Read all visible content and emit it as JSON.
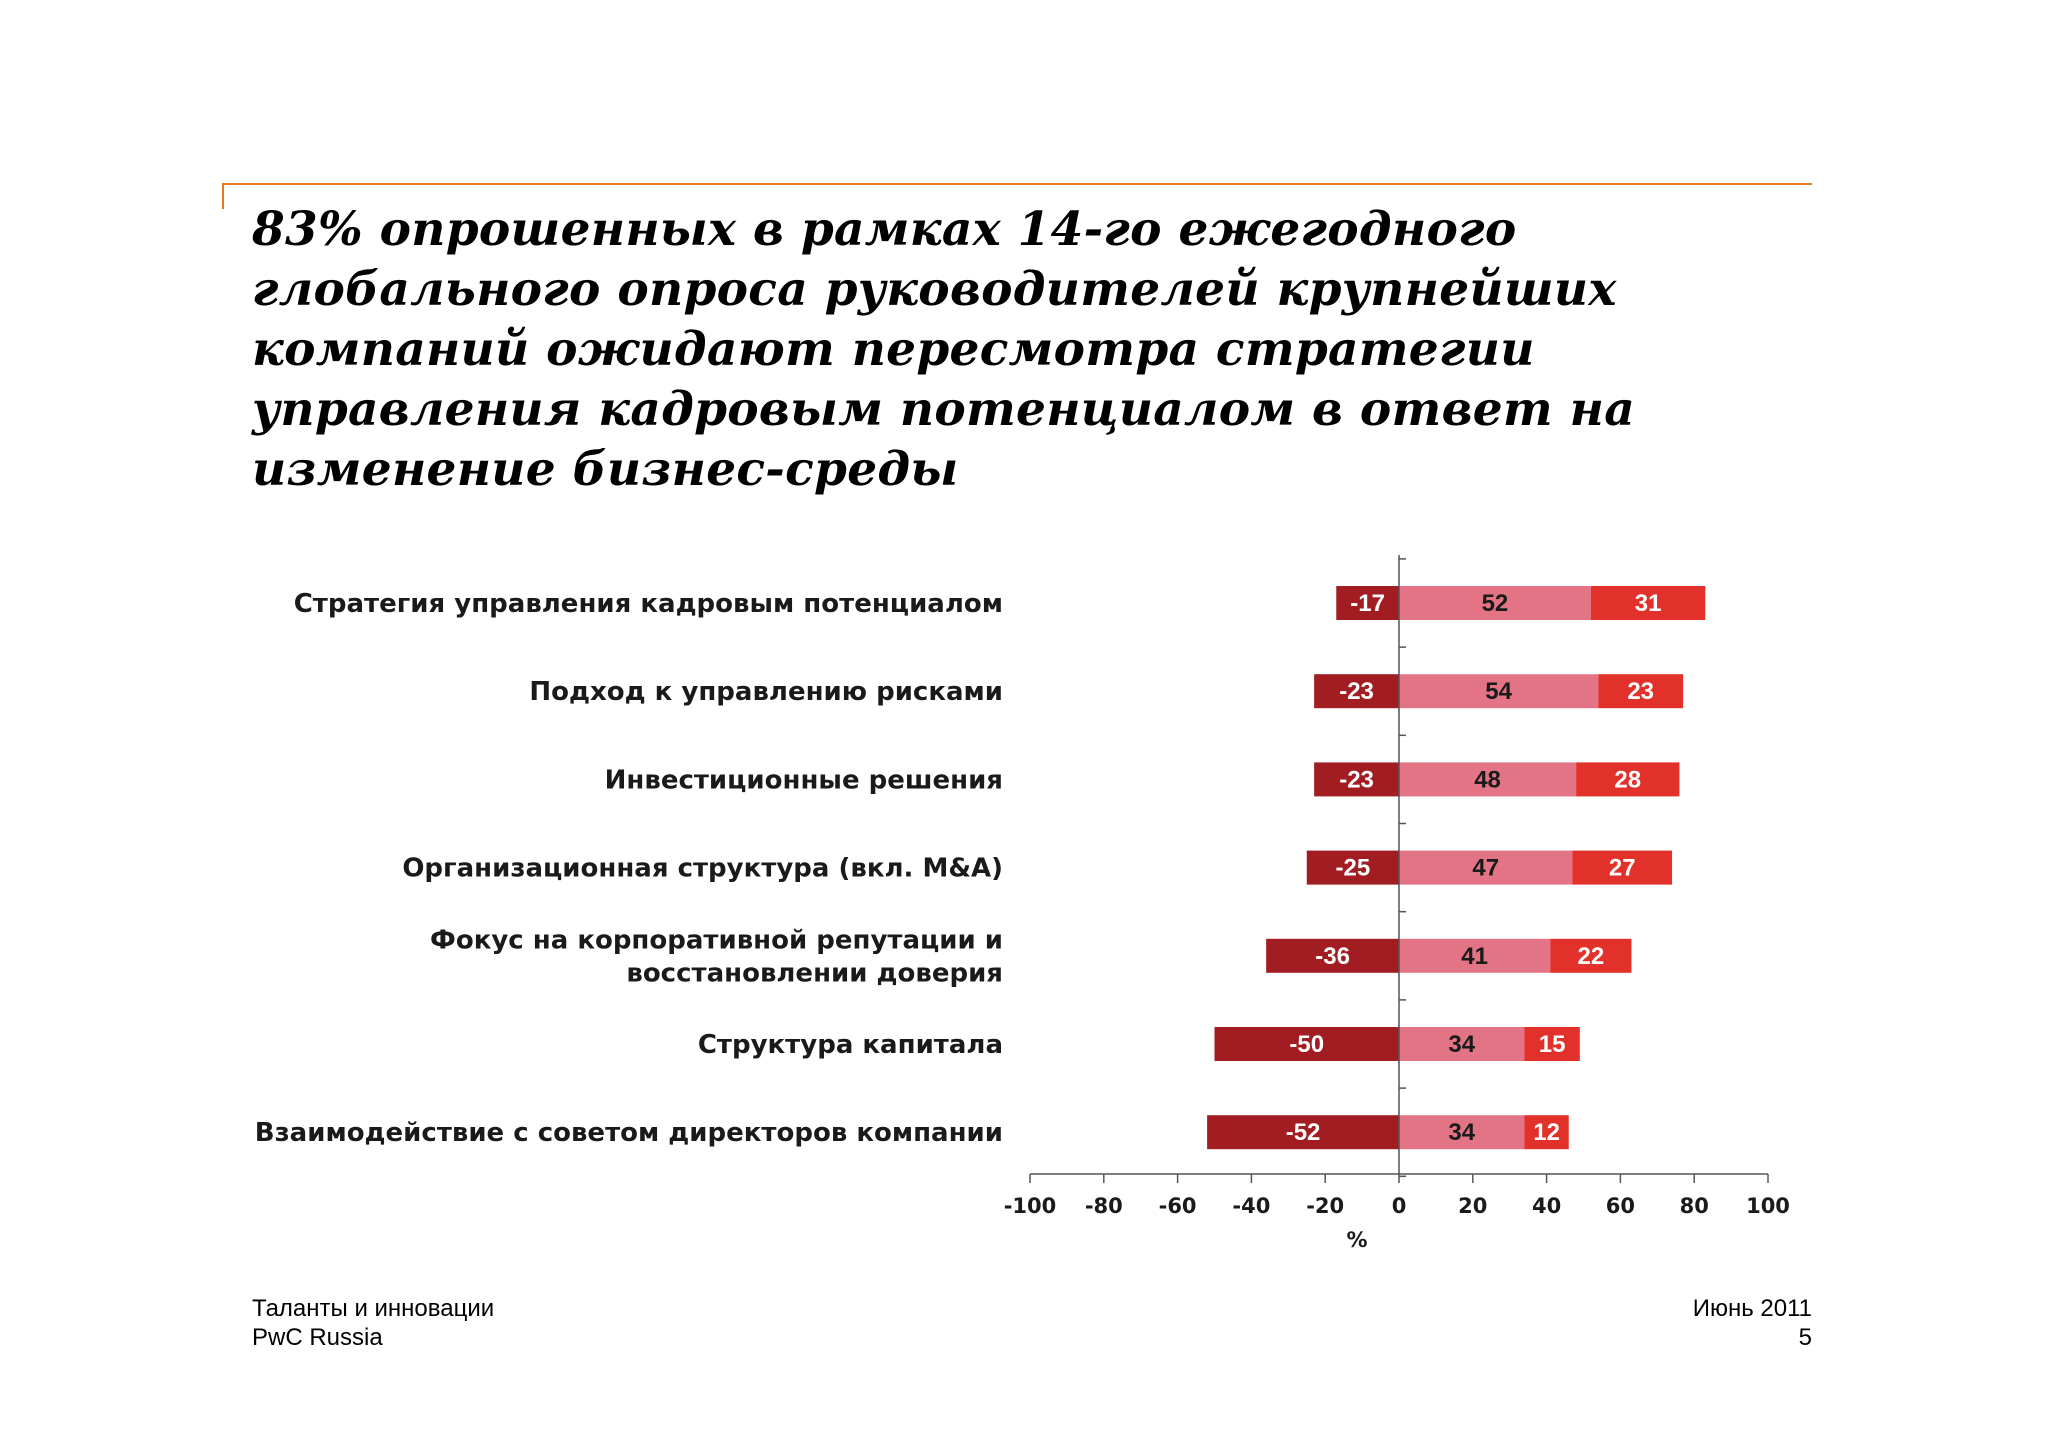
{
  "slide": {
    "title": "83% опрошенных в рамках 14-го ежегодного глобального опроса руководителей крупнейших компаний ожидают пересмотра стратегии управления кадровым потенциалом в ответ на изменение бизнес-среды"
  },
  "footer": {
    "left_line1": "Таланты и инновации",
    "left_line2": "PwC Russia",
    "right_line1": "Июнь 2011",
    "right_line2": "5"
  },
  "colors": {
    "negative": "#a11d22",
    "middle": "#e27485",
    "positive": "#e2302a",
    "accent_rule": "#e07a1f"
  },
  "chart_data": {
    "type": "bar",
    "orientation": "horizontal",
    "stacked": true,
    "categories": [
      [
        "Стратегия управления кадровым потенциалом"
      ],
      [
        "Подход к управлению рисками"
      ],
      [
        "Инвестиционные решения"
      ],
      [
        "Организационная структура (вкл. M&A)"
      ],
      [
        "Фокус на корпоративной репутации и",
        "восстановлении доверия"
      ],
      [
        "Структура капитала"
      ],
      [
        "Взаимодействие  с советом директоров компании"
      ]
    ],
    "series": [
      {
        "values": [
          -17,
          -23,
          -23,
          -25,
          -36,
          -50,
          -52
        ]
      },
      {
        "values": [
          52,
          54,
          48,
          47,
          41,
          34,
          34
        ]
      },
      {
        "values": [
          31,
          23,
          28,
          27,
          22,
          15,
          12
        ]
      }
    ],
    "xlabel": "%",
    "xlim": [
      -100,
      100
    ],
    "xticks": [
      -100,
      -80,
      -60,
      -40,
      -20,
      0,
      20,
      40,
      60,
      80,
      100
    ],
    "grid": false,
    "legend": "none"
  }
}
